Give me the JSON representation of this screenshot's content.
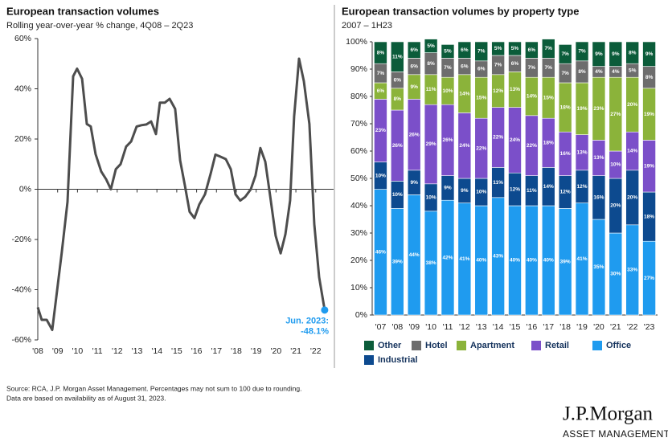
{
  "chart_data": [
    {
      "type": "line",
      "title": "European transaction volumes",
      "subtitle": "Rolling year-over-year % change, 4Q08 – 2Q23",
      "x": [
        2008.0,
        2008.2,
        2008.45,
        2008.73,
        2008.93,
        2009.21,
        2009.5,
        2009.78,
        2009.98,
        2010.23,
        2010.47,
        2010.67,
        2010.91,
        2011.2,
        2011.44,
        2011.68,
        2011.93,
        2012.17,
        2012.45,
        2012.7,
        2012.98,
        2013.22,
        2013.47,
        2013.71,
        2013.95,
        2014.15,
        2014.4,
        2014.64,
        2014.92,
        2015.17,
        2015.41,
        2015.65,
        2015.89,
        2016.14,
        2016.42,
        2016.7,
        2016.95,
        2017.19,
        2017.47,
        2017.72,
        2017.96,
        2018.2,
        2018.45,
        2018.73,
        2018.97,
        2019.21,
        2019.46,
        2019.7,
        2019.98,
        2020.23,
        2020.47,
        2020.71,
        2020.91,
        2021.16,
        2021.4,
        2021.68,
        2021.93,
        2022.17,
        2022.45
      ],
      "series": [
        {
          "color": "#4d4d4d",
          "values": [
            -47,
            -52,
            -52,
            -56,
            -43,
            -25,
            -5,
            45,
            48,
            44,
            26,
            25,
            14,
            7,
            4,
            0,
            8,
            10,
            17,
            19,
            25,
            25.5,
            25.8,
            27,
            22,
            34.5,
            34.5,
            36,
            32,
            11.5,
            1.5,
            -9,
            -11.5,
            -6,
            -2,
            6,
            13.8,
            13,
            12,
            8,
            -2,
            -4.5,
            -3,
            0,
            5.5,
            16.4,
            11,
            -2.5,
            -18.5,
            -25.5,
            -18,
            -4.5,
            29,
            52,
            43,
            26,
            -14,
            -35,
            -48.1
          ]
        }
      ],
      "xlim": [
        2008,
        2022.9
      ],
      "xticks": [
        {
          "value": 2008,
          "label": "'08"
        },
        {
          "value": 2009,
          "label": "'09"
        },
        {
          "value": 2010,
          "label": "'10"
        },
        {
          "value": 2011,
          "label": "'11"
        },
        {
          "value": 2012,
          "label": "'12"
        },
        {
          "value": 2013,
          "label": "'13"
        },
        {
          "value": 2014,
          "label": "'14"
        },
        {
          "value": 2015,
          "label": "'15"
        },
        {
          "value": 2016,
          "label": "'16"
        },
        {
          "value": 2017,
          "label": "'17"
        },
        {
          "value": 2018,
          "label": "'18"
        },
        {
          "value": 2019,
          "label": "'19"
        },
        {
          "value": 2020,
          "label": "'20"
        },
        {
          "value": 2021,
          "label": "'21"
        },
        {
          "value": 2022,
          "label": "'22"
        }
      ],
      "ylim": [
        -60,
        60
      ],
      "yticks": [
        {
          "value": -60,
          "label": "-60%"
        },
        {
          "value": -40,
          "label": "-40%"
        },
        {
          "value": -20,
          "label": "-20%"
        },
        {
          "value": 0,
          "label": "0%"
        },
        {
          "value": 20,
          "label": "20%"
        },
        {
          "value": 40,
          "label": "40%"
        },
        {
          "value": 60,
          "label": "60%"
        }
      ],
      "annotation": {
        "label": "Jun. 2023:",
        "value": -48.1,
        "value_label": "-48.1%",
        "color": "#1f9bef"
      }
    },
    {
      "type": "stacked_bar",
      "title": "European transaction volumes by property type",
      "subtitle": "2007 – 1H23",
      "categories": [
        "'07",
        "'08",
        "'09",
        "'10",
        "'11",
        "'12",
        "'13",
        "'14",
        "'15",
        "'16",
        "'17",
        "'18",
        "'19",
        "'20",
        "'21",
        "'22",
        "'23"
      ],
      "series": [
        {
          "name": "Office",
          "color": "#1f9bef",
          "values": [
            46,
            39,
            44,
            38,
            42,
            41,
            40,
            43,
            40,
            40,
            40,
            39,
            41,
            35,
            30,
            33,
            27
          ],
          "value_labels": [
            "46%",
            "39%",
            "44%",
            "38%",
            "42%",
            "41%",
            "40%",
            "43%",
            "40%",
            "40%",
            "40%",
            "39%",
            "41%",
            "35%",
            "30%",
            "33%",
            "27%"
          ]
        },
        {
          "name": "Industrial",
          "color": "#0d4a8f",
          "values": [
            10,
            10,
            9,
            10,
            9,
            9,
            10,
            11,
            12,
            11,
            14,
            12,
            12,
            16,
            20,
            20,
            18
          ],
          "value_labels": [
            "10%",
            "10%",
            "9%",
            "10%",
            "9%",
            "9%",
            "10%",
            "11%",
            "12%",
            "11%",
            "14%",
            "12%",
            "12%",
            "16%",
            "20%",
            "20%",
            "18%"
          ]
        },
        {
          "name": "Retail",
          "color": "#7b4fc9",
          "values": [
            23,
            26,
            26,
            29,
            26,
            24,
            22,
            22,
            24,
            22,
            18,
            16,
            13,
            13,
            10,
            14,
            19
          ],
          "value_labels": [
            "23%",
            "26%",
            "26%",
            "29%",
            "26%",
            "24%",
            "22%",
            "22%",
            "24%",
            "22%",
            "18%",
            "16%",
            "13%",
            "13%",
            "10%",
            "14%",
            "19%"
          ]
        },
        {
          "name": "Apartment",
          "color": "#8bb33a",
          "values": [
            6,
            8,
            9,
            11,
            10,
            14,
            15,
            12,
            13,
            14,
            15,
            18,
            19,
            23,
            27,
            20,
            19
          ],
          "value_labels": [
            "6%",
            "8%",
            "9%",
            "11%",
            "10%",
            "14%",
            "15%",
            "12%",
            "13%",
            "14%",
            "15%",
            "18%",
            "19%",
            "23%",
            "27%",
            "20%",
            "19%"
          ]
        },
        {
          "name": "Hotel",
          "color": "#6d6d6d",
          "values": [
            7,
            6,
            6,
            8,
            7,
            6,
            6,
            7,
            6,
            7,
            7,
            7,
            8,
            4,
            4,
            5,
            8
          ],
          "value_labels": [
            "7%",
            "6%",
            "6%",
            "8%",
            "7%",
            "6%",
            "6%",
            "7%",
            "6%",
            "7%",
            "7%",
            "7%",
            "8%",
            "4%",
            "4%",
            "5%",
            "8%"
          ]
        },
        {
          "name": "Other",
          "color": "#0b5c3a",
          "values": [
            8,
            11,
            6,
            5,
            5,
            6,
            7,
            5,
            5,
            6,
            7,
            7,
            7,
            9,
            9,
            8,
            9
          ],
          "value_labels": [
            "8%",
            "11%",
            "6%",
            "5%",
            "5%",
            "6%",
            "7%",
            "5%",
            "5%",
            "6%",
            "7%",
            "7%",
            "7%",
            "9%",
            "9%",
            "8%",
            "9%"
          ]
        }
      ],
      "ylim": [
        0,
        100
      ],
      "yticks": [
        {
          "value": 0,
          "label": "0%"
        },
        {
          "value": 10,
          "label": "10%"
        },
        {
          "value": 20,
          "label": "20%"
        },
        {
          "value": 30,
          "label": "30%"
        },
        {
          "value": 40,
          "label": "40%"
        },
        {
          "value": 50,
          "label": "50%"
        },
        {
          "value": 60,
          "label": "60%"
        },
        {
          "value": 70,
          "label": "70%"
        },
        {
          "value": 80,
          "label": "80%"
        },
        {
          "value": 90,
          "label": "90%"
        },
        {
          "value": 100,
          "label": "100%"
        }
      ]
    }
  ],
  "footer": {
    "source": [
      "Source: RCA, J.P. Morgan Asset Management.  Percentages may not sum to 100 due to rounding.",
      "Data are based on availability as of August 31, 2023."
    ],
    "logo": "J.P.Morgan",
    "logo_sub": "ASSET MANAGEMENT"
  }
}
